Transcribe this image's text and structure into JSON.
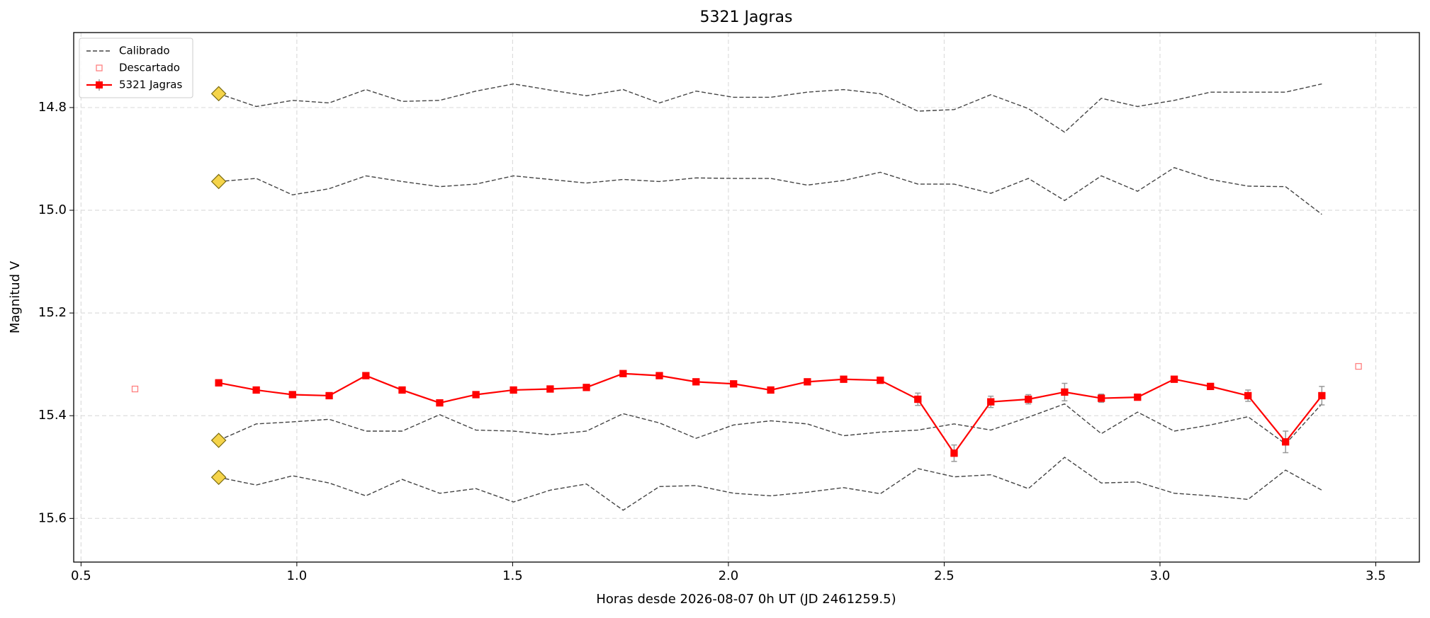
{
  "chart_data": {
    "type": "line",
    "title": "5321 Jagras",
    "x_label": "Horas desde 2026-08-07 0h UT (JD 2461259.5)",
    "y_label": "Magnitud V",
    "xlim": [
      0.483,
      3.601
    ],
    "ylim": [
      15.685,
      14.654
    ],
    "xticks": [
      {
        "value": 0.5,
        "label": "0.5"
      },
      {
        "value": 1.0,
        "label": "1.0"
      },
      {
        "value": 1.5,
        "label": "1.5"
      },
      {
        "value": 2.0,
        "label": "2.0"
      },
      {
        "value": 2.5,
        "label": "2.5"
      },
      {
        "value": 3.0,
        "label": "3.0"
      },
      {
        "value": 3.5,
        "label": "3.5"
      }
    ],
    "yticks": [
      14.8,
      {
        "value": 15.0,
        "label": "15.0"
      },
      15.2,
      15.4,
      15.6
    ],
    "grid": true,
    "legend": "upper left",
    "x": [
      0.819,
      0.906,
      0.99,
      1.075,
      1.16,
      1.244,
      1.331,
      1.415,
      1.502,
      1.587,
      1.671,
      1.756,
      1.84,
      1.925,
      2.012,
      2.098,
      2.183,
      2.267,
      2.352,
      2.439,
      2.523,
      2.608,
      2.695,
      2.779,
      2.864,
      2.948,
      3.033,
      3.117,
      3.204,
      3.291,
      3.375
    ],
    "series": [
      {
        "name": "Calibrado",
        "color": "#444444",
        "style": "dashed",
        "start_marker": "diamond",
        "marker_color": "#f5d44a",
        "lines": [
          [
            14.773,
            14.798,
            14.786,
            14.791,
            14.765,
            14.788,
            14.786,
            14.768,
            14.754,
            14.766,
            14.777,
            14.765,
            14.791,
            14.768,
            14.78,
            14.78,
            14.77,
            14.765,
            14.773,
            14.807,
            14.804,
            14.775,
            14.802,
            14.848,
            14.782,
            14.798,
            14.786,
            14.77,
            14.77,
            14.77,
            14.754
          ],
          [
            14.944,
            14.938,
            14.97,
            14.958,
            14.933,
            14.944,
            14.954,
            14.949,
            14.933,
            14.94,
            14.947,
            14.94,
            14.944,
            14.937,
            14.938,
            14.938,
            14.951,
            14.942,
            14.926,
            14.949,
            14.949,
            14.967,
            14.938,
            14.981,
            14.933,
            14.963,
            14.917,
            14.94,
            14.953,
            14.954,
            15.008
          ],
          [
            15.448,
            15.416,
            15.412,
            15.407,
            15.43,
            15.43,
            15.398,
            15.428,
            15.43,
            15.437,
            15.43,
            15.396,
            15.414,
            15.444,
            15.418,
            15.41,
            15.416,
            15.439,
            15.432,
            15.428,
            15.416,
            15.428,
            15.403,
            15.377,
            15.435,
            15.393,
            15.43,
            15.418,
            15.402,
            15.455,
            15.377
          ],
          [
            15.52,
            15.535,
            15.517,
            15.531,
            15.556,
            15.524,
            15.551,
            15.542,
            15.568,
            15.545,
            15.533,
            15.584,
            15.538,
            15.536,
            15.551,
            15.556,
            15.549,
            15.54,
            15.552,
            15.503,
            15.519,
            15.515,
            15.542,
            15.481,
            15.531,
            15.529,
            15.551,
            15.556,
            15.563,
            15.506,
            15.545
          ]
        ]
      },
      {
        "name": "Descartado",
        "color": "#ff8080",
        "marker": "square-open",
        "x": [
          0.625,
          3.46
        ],
        "values": [
          15.348,
          15.304
        ]
      },
      {
        "name": "5321 Jagras",
        "color": "#ff0000",
        "marker": "square",
        "error_color": "#999999",
        "values": [
          15.336,
          15.35,
          15.359,
          15.361,
          15.322,
          15.35,
          15.375,
          15.359,
          15.35,
          15.348,
          15.345,
          15.318,
          15.322,
          15.334,
          15.338,
          15.35,
          15.334,
          15.329,
          15.331,
          15.368,
          15.473,
          15.373,
          15.368,
          15.354,
          15.366,
          15.364,
          15.329,
          15.343,
          15.361,
          15.451,
          15.361
        ],
        "errors": [
          0.006,
          0.004,
          0.004,
          0.005,
          0.005,
          0.004,
          0.004,
          0.004,
          0.004,
          0.004,
          0.004,
          0.004,
          0.004,
          0.004,
          0.004,
          0.004,
          0.004,
          0.004,
          0.004,
          0.012,
          0.016,
          0.011,
          0.009,
          0.017,
          0.008,
          0.005,
          0.004,
          0.004,
          0.011,
          0.021,
          0.018
        ]
      }
    ]
  }
}
